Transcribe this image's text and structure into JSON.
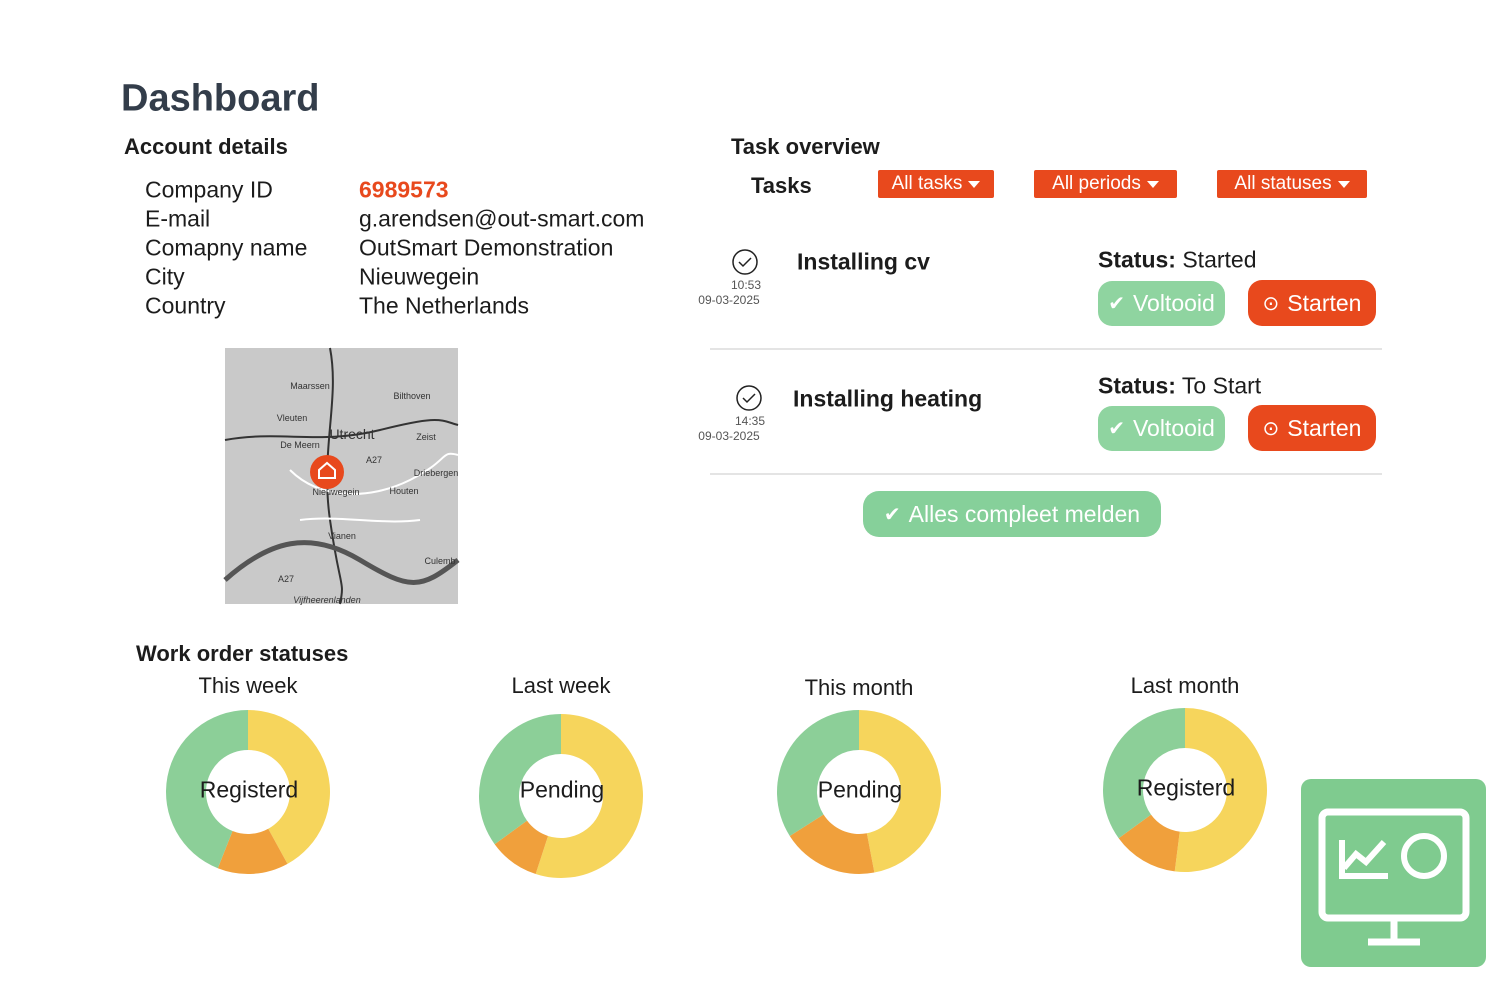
{
  "header": {
    "title": "Dashboard"
  },
  "account": {
    "title": "Account details",
    "rows": [
      [
        "Company ID",
        "6989573"
      ],
      [
        "E-mail",
        "g.arendsen@out-smart.com"
      ],
      [
        "Comapny name",
        "OutSmart Demonstration"
      ],
      [
        "City",
        "Nieuwegein"
      ],
      [
        "Country",
        "The Netherlands"
      ]
    ],
    "map_labels": [
      "Maarssen",
      "Bilthoven",
      "Vleuten",
      "Utrecht",
      "Zeist",
      "De Meern",
      "A27",
      "Nieuwegein",
      "Houten",
      "Driebergen",
      "Vianen",
      "Culemb",
      "A27",
      "Vijfheerenlanden"
    ]
  },
  "tasks": {
    "title": "Task overview",
    "label": "Tasks",
    "filters": [
      "All tasks",
      "All periods",
      "All statuses"
    ],
    "items": [
      {
        "time": "10:53",
        "date": "09-03-2025",
        "name": "Installing cv",
        "status_label": "Status:",
        "status": "Started",
        "done": "Voltooid",
        "start": "Starten"
      },
      {
        "time": "14:35",
        "date": "09-03-2025",
        "name": "Installing heating",
        "status_label": "Status:",
        "status": "To Start",
        "done": "Voltooid",
        "start": "Starten"
      }
    ],
    "complete_button": "Alles compleet melden"
  },
  "work_orders": {
    "title": "Work order statuses",
    "charts": [
      {
        "type": "donut",
        "title": "This week",
        "center_label": "Registerd",
        "values": [
          42,
          14,
          44
        ],
        "colors": [
          "#f6d55c",
          "#f0a03c",
          "#8ccf98"
        ]
      },
      {
        "type": "donut",
        "title": "Last week",
        "center_label": "Pending",
        "values": [
          55,
          10,
          35
        ],
        "colors": [
          "#f6d55c",
          "#f0a03c",
          "#8ccf98"
        ]
      },
      {
        "type": "donut",
        "title": "This month",
        "center_label": "Pending",
        "values": [
          47,
          19,
          34
        ],
        "colors": [
          "#f6d55c",
          "#f0a03c",
          "#8ccf98"
        ]
      },
      {
        "type": "donut",
        "title": "Last month",
        "center_label": "Registerd",
        "values": [
          52,
          13,
          35
        ],
        "colors": [
          "#f6d55c",
          "#f0a03c",
          "#8ccf98"
        ]
      }
    ]
  }
}
